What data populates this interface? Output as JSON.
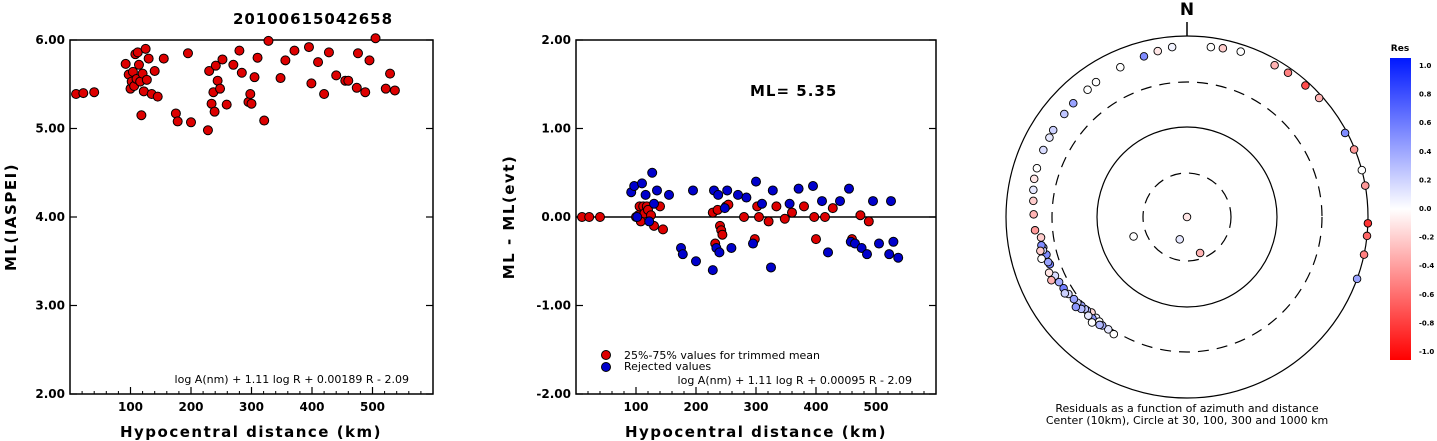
{
  "title": "20100615042658",
  "chart_data": [
    {
      "type": "scatter",
      "title": "",
      "xlabel": "Hypocentral distance (km)",
      "ylabel": "ML(IASPEI)",
      "xlim": [
        0,
        600
      ],
      "ylim": [
        2.0,
        6.0
      ],
      "xticks": [
        "100",
        "200",
        "300",
        "400",
        "500"
      ],
      "yticks": [
        "2.00",
        "3.00",
        "4.00",
        "5.00",
        "6.00"
      ],
      "formula": "log A(nm) + 1.11 log R + 0.00189 R - 2.09",
      "series": [
        {
          "color": "#dd0000",
          "points": [
            [
              10,
              5.39
            ],
            [
              22,
              5.4
            ],
            [
              40,
              5.41
            ],
            [
              92,
              5.73
            ],
            [
              97,
              5.61
            ],
            [
              100,
              5.45
            ],
            [
              102,
              5.53
            ],
            [
              104,
              5.64
            ],
            [
              106,
              5.48
            ],
            [
              108,
              5.84
            ],
            [
              110,
              5.56
            ],
            [
              112,
              5.86
            ],
            [
              114,
              5.72
            ],
            [
              116,
              5.53
            ],
            [
              118,
              5.15
            ],
            [
              120,
              5.62
            ],
            [
              122,
              5.42
            ],
            [
              125,
              5.9
            ],
            [
              127,
              5.55
            ],
            [
              130,
              5.79
            ],
            [
              135,
              5.39
            ],
            [
              140,
              5.65
            ],
            [
              145,
              5.36
            ],
            [
              155,
              5.79
            ],
            [
              175,
              5.17
            ],
            [
              178,
              5.08
            ],
            [
              195,
              5.85
            ],
            [
              200,
              5.07
            ],
            [
              228,
              4.98
            ],
            [
              230,
              5.65
            ],
            [
              234,
              5.28
            ],
            [
              237,
              5.41
            ],
            [
              239,
              5.19
            ],
            [
              241,
              5.71
            ],
            [
              244,
              5.54
            ],
            [
              248,
              5.45
            ],
            [
              252,
              5.78
            ],
            [
              259,
              5.27
            ],
            [
              270,
              5.72
            ],
            [
              280,
              5.88
            ],
            [
              284,
              5.63
            ],
            [
              295,
              5.3
            ],
            [
              298,
              5.39
            ],
            [
              300,
              5.28
            ],
            [
              305,
              5.58
            ],
            [
              310,
              5.8
            ],
            [
              321,
              5.09
            ],
            [
              328,
              5.99
            ],
            [
              348,
              5.57
            ],
            [
              356,
              5.77
            ],
            [
              371,
              5.88
            ],
            [
              395,
              5.92
            ],
            [
              399,
              5.51
            ],
            [
              410,
              5.75
            ],
            [
              420,
              5.39
            ],
            [
              428,
              5.86
            ],
            [
              440,
              5.6
            ],
            [
              455,
              5.54
            ],
            [
              460,
              5.54
            ],
            [
              474,
              5.46
            ],
            [
              476,
              5.85
            ],
            [
              488,
              5.41
            ],
            [
              495,
              5.77
            ],
            [
              505,
              6.02
            ],
            [
              522,
              5.45
            ],
            [
              529,
              5.62
            ],
            [
              537,
              5.43
            ]
          ]
        }
      ]
    },
    {
      "type": "scatter",
      "title": "",
      "xlabel": "Hypocentral distance (km)",
      "ylabel": "ML - ML(evt)",
      "xlim": [
        0,
        600
      ],
      "ylim": [
        -2.0,
        2.0
      ],
      "xticks": [
        "100",
        "200",
        "300",
        "400",
        "500"
      ],
      "yticks": [
        "-2.00",
        "-1.00",
        "0.00",
        "1.00",
        "2.00"
      ],
      "annotation": "ML= 5.35",
      "formula": "log A(nm) + 1.11 log R + 0.00095 R - 2.09",
      "legend": [
        "25%-75% values for trimmed mean",
        "Rejected values"
      ],
      "legend_position": "bottom-left",
      "reference_line": 0.0,
      "series": [
        {
          "name": "25%-75% values for trimmed mean",
          "color": "#dd0000",
          "points": [
            [
              10,
              0.0
            ],
            [
              22,
              0.0
            ],
            [
              40,
              0.0
            ],
            [
              100,
              0.0
            ],
            [
              104,
              0.02
            ],
            [
              106,
              0.12
            ],
            [
              108,
              -0.05
            ],
            [
              112,
              0.12
            ],
            [
              114,
              0.04
            ],
            [
              118,
              0.12
            ],
            [
              120,
              0.08
            ],
            [
              125,
              0.02
            ],
            [
              130,
              -0.1
            ],
            [
              140,
              0.12
            ],
            [
              145,
              -0.14
            ],
            [
              228,
              0.05
            ],
            [
              232,
              -0.3
            ],
            [
              236,
              0.08
            ],
            [
              240,
              -0.1
            ],
            [
              242,
              -0.15
            ],
            [
              244,
              -0.2
            ],
            [
              250,
              0.12
            ],
            [
              254,
              0.14
            ],
            [
              280,
              0.0
            ],
            [
              298,
              -0.25
            ],
            [
              302,
              0.12
            ],
            [
              305,
              0.0
            ],
            [
              321,
              -0.05
            ],
            [
              334,
              0.12
            ],
            [
              348,
              -0.02
            ],
            [
              360,
              0.05
            ],
            [
              380,
              0.12
            ],
            [
              397,
              0.0
            ],
            [
              400,
              -0.25
            ],
            [
              415,
              0.0
            ],
            [
              428,
              0.1
            ],
            [
              460,
              -0.25
            ],
            [
              474,
              0.02
            ],
            [
              488,
              -0.05
            ]
          ]
        },
        {
          "name": "Rejected values",
          "color": "#0000cc",
          "points": [
            [
              92,
              0.28
            ],
            [
              97,
              0.35
            ],
            [
              102,
              0.0
            ],
            [
              110,
              0.38
            ],
            [
              116,
              0.25
            ],
            [
              122,
              -0.05
            ],
            [
              127,
              0.5
            ],
            [
              130,
              0.15
            ],
            [
              135,
              0.3
            ],
            [
              155,
              0.25
            ],
            [
              175,
              -0.35
            ],
            [
              178,
              -0.42
            ],
            [
              195,
              0.3
            ],
            [
              200,
              -0.5
            ],
            [
              228,
              -0.6
            ],
            [
              230,
              0.3
            ],
            [
              234,
              -0.35
            ],
            [
              237,
              0.25
            ],
            [
              239,
              -0.4
            ],
            [
              248,
              0.1
            ],
            [
              252,
              0.3
            ],
            [
              259,
              -0.35
            ],
            [
              270,
              0.25
            ],
            [
              284,
              0.22
            ],
            [
              295,
              -0.3
            ],
            [
              300,
              0.4
            ],
            [
              310,
              0.15
            ],
            [
              325,
              -0.57
            ],
            [
              328,
              0.3
            ],
            [
              356,
              0.15
            ],
            [
              371,
              0.32
            ],
            [
              395,
              0.35
            ],
            [
              410,
              0.18
            ],
            [
              420,
              -0.4
            ],
            [
              440,
              0.18
            ],
            [
              455,
              0.32
            ],
            [
              458,
              -0.28
            ],
            [
              465,
              -0.3
            ],
            [
              476,
              -0.35
            ],
            [
              485,
              -0.42
            ],
            [
              495,
              0.18
            ],
            [
              505,
              -0.3
            ],
            [
              522,
              -0.42
            ],
            [
              525,
              0.18
            ],
            [
              529,
              -0.28
            ],
            [
              537,
              -0.46
            ]
          ]
        }
      ]
    },
    {
      "type": "scatter",
      "subtype": "polar",
      "north_label": "N",
      "caption": [
        "Residuals as a function of azimuth and distance",
        "Center (10km), Circle at 30, 100, 300 and 1000 km"
      ],
      "colorbar": {
        "title": "Res",
        "ticks": [
          "1.0",
          "0.8",
          "0.6",
          "0.4",
          "0.2",
          "0.0",
          "-0.2",
          "-0.4",
          "-0.6",
          "-0.8",
          "-1.0"
        ],
        "high_color": "#0018ff",
        "low_color": "#ff0000"
      },
      "points": [
        [
          10,
          150,
          -0.1
        ],
        [
          26,
          160,
          -0.3
        ],
        [
          18,
          198,
          0.1
        ],
        [
          42,
          250,
          0.0
        ],
        [
          300,
          225,
          -0.15
        ],
        [
          306,
          222,
          0.05
        ],
        [
          312,
          220,
          0.0
        ],
        [
          315,
          227,
          0.3
        ],
        [
          318,
          215,
          0.1
        ],
        [
          320,
          228,
          0.25
        ],
        [
          322,
          218,
          0.35
        ],
        [
          324,
          230,
          0.4
        ],
        [
          326,
          212,
          0.0
        ],
        [
          330,
          223,
          0.45
        ],
        [
          332,
          219,
          0.3
        ],
        [
          335,
          232,
          0.2
        ],
        [
          338,
          225,
          0.1
        ],
        [
          340,
          234,
          0.4
        ],
        [
          343,
          229,
          0.3
        ],
        [
          355,
          237,
          0.15
        ],
        [
          360,
          222,
          0.0
        ],
        [
          365,
          240,
          0.55
        ],
        [
          370,
          231,
          0.45
        ],
        [
          375,
          243,
          0.35
        ],
        [
          380,
          238,
          0.2
        ],
        [
          385,
          246,
          0.15
        ],
        [
          390,
          251,
          0.55
        ],
        [
          395,
          255,
          0.5
        ],
        [
          400,
          252,
          0.4
        ],
        [
          410,
          258,
          0.3
        ],
        [
          415,
          262,
          -0.2
        ],
        [
          420,
          257,
          0.2
        ],
        [
          425,
          259,
          0.5
        ],
        [
          430,
          248,
          -0.1
        ],
        [
          440,
          245,
          -0.3
        ],
        [
          450,
          257,
          -0.2
        ],
        [
          460,
          254,
          0.0
        ],
        [
          475,
          265,
          -0.4
        ],
        [
          485,
          271,
          -0.3
        ],
        [
          500,
          276,
          -0.2
        ],
        [
          520,
          280,
          0.1
        ],
        [
          540,
          284,
          -0.1
        ],
        [
          545,
          288,
          0.0
        ],
        [
          555,
          295,
          0.15
        ],
        [
          560,
          300,
          0.1
        ],
        [
          570,
          303,
          0.2
        ],
        [
          580,
          310,
          0.25
        ],
        [
          590,
          315,
          0.4
        ],
        [
          600,
          322,
          0.0
        ],
        [
          620,
          326,
          0.0
        ],
        [
          640,
          336,
          0.0
        ],
        [
          680,
          345,
          0.5
        ],
        [
          720,
          350,
          -0.1
        ],
        [
          760,
          355,
          0.05
        ],
        [
          780,
          8,
          0.0
        ],
        [
          800,
          12,
          -0.2
        ],
        [
          830,
          18,
          0.0
        ],
        [
          860,
          30,
          -0.3
        ],
        [
          880,
          35,
          -0.5
        ],
        [
          900,
          42,
          -0.7
        ],
        [
          920,
          48,
          -0.3
        ],
        [
          950,
          62,
          0.5
        ],
        [
          980,
          68,
          -0.4
        ],
        [
          1000,
          75,
          0.0
        ],
        [
          1020,
          80,
          -0.4
        ],
        [
          1040,
          92,
          -0.8
        ],
        [
          1080,
          96,
          -0.6
        ],
        [
          1120,
          102,
          -0.5
        ],
        [
          1150,
          110,
          0.4
        ]
      ]
    }
  ]
}
